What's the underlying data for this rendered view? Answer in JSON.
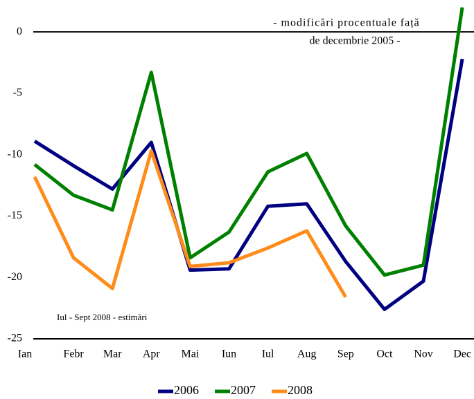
{
  "chart_data": {
    "type": "line",
    "annotations": [
      "- modificări procentuale față",
      "de decembrie 2005 -",
      "Iul - Sept 2008 - estimări"
    ],
    "categories": [
      "Ian",
      "Febr",
      "Mar",
      "Apr",
      "Mai",
      "Iun",
      "Iul",
      "Aug",
      "Sep",
      "Oct",
      "Nov",
      "Dec"
    ],
    "series": [
      {
        "name": "2006",
        "color": "#000080",
        "values": [
          -8.9,
          -10.9,
          -12.8,
          -9.0,
          -19.4,
          -19.3,
          -14.2,
          -14.0,
          -18.7,
          -22.6,
          -20.3,
          -2.2
        ]
      },
      {
        "name": "2007",
        "color": "#008000",
        "values": [
          -10.8,
          -13.3,
          -14.5,
          -3.3,
          -18.4,
          -16.3,
          -11.4,
          -9.9,
          -15.8,
          -19.8,
          -19.0,
          2.0
        ]
      },
      {
        "name": "2008",
        "color": "#ff8c1a",
        "values": [
          -11.8,
          -18.4,
          -20.9,
          -9.7,
          -19.1,
          -18.8,
          -17.6,
          -16.2,
          -21.6,
          null,
          null,
          null
        ]
      }
    ],
    "ylim": [
      -25,
      2.6
    ],
    "yticks": [
      0,
      -5,
      -10,
      -15,
      -20,
      -25
    ]
  }
}
